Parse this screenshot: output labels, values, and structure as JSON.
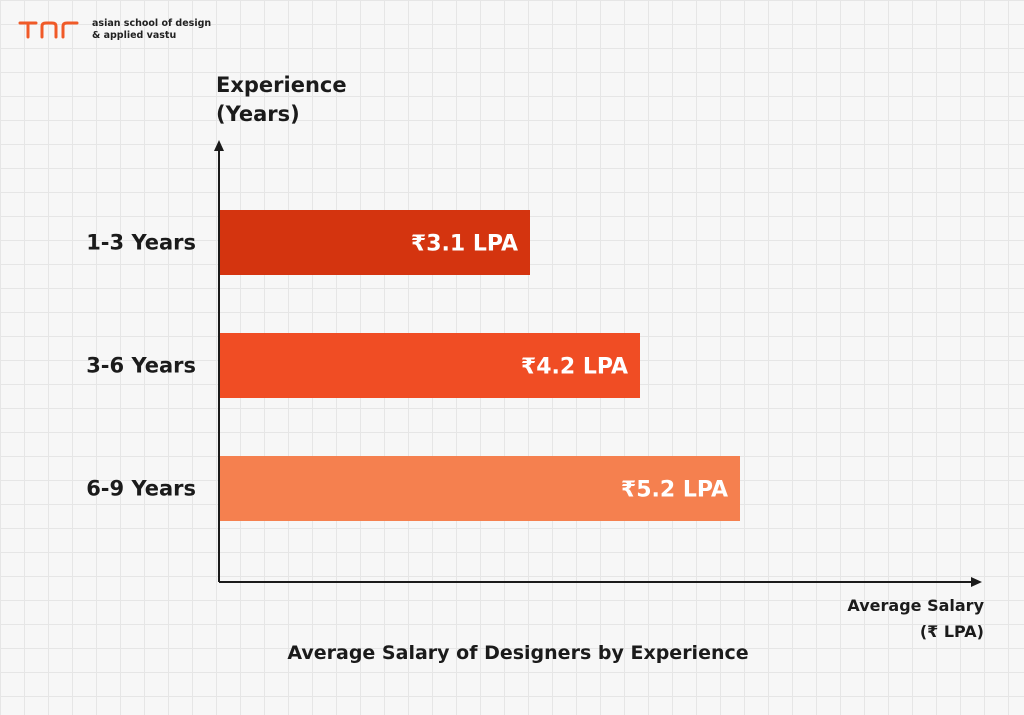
{
  "brand": {
    "name_line1": "asian school of design",
    "name_line2": "& applied vastu",
    "color": "#f05a28"
  },
  "chart_data": {
    "type": "bar",
    "orientation": "horizontal",
    "title": "Average Salary of Designers by Experience",
    "ylabel": [
      "Experience",
      "(Years)"
    ],
    "xlabel": [
      "Average Salary",
      "(₹ LPA)"
    ],
    "categories": [
      "1-3 Years",
      "3-6 Years",
      "6-9 Years"
    ],
    "values": [
      3.1,
      4.2,
      5.2
    ],
    "value_labels": [
      "₹3.1 LPA",
      "₹4.2 LPA",
      "₹5.2 LPA"
    ],
    "colors": [
      "#d4340f",
      "#f04d24",
      "#f5804f"
    ],
    "xlim": [
      0,
      7.4
    ],
    "grid": true
  }
}
